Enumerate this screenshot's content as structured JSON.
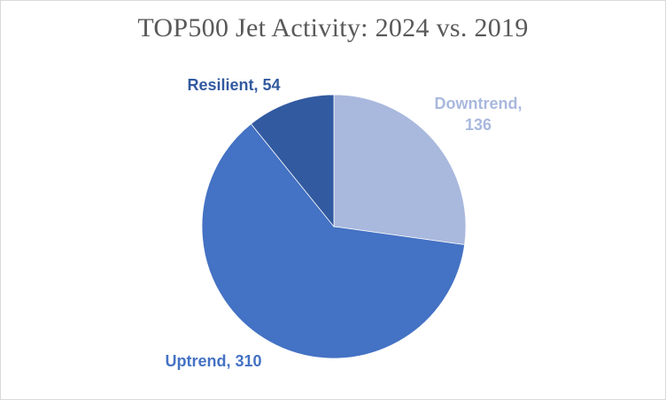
{
  "chart_data": {
    "type": "pie",
    "title": "TOP500 Jet Activity: 2024 vs. 2019",
    "slices": [
      {
        "label": "Downtrend",
        "value": 136,
        "display": "Downtrend, 136",
        "color": "#a9b8dd",
        "label_color": "#a9b8dd"
      },
      {
        "label": "Uptrend",
        "value": 310,
        "display": "Uptrend, 310",
        "color": "#4472c4",
        "label_color": "#4472c4"
      },
      {
        "label": "Resilient",
        "value": 54,
        "display": "Resilient, 54",
        "color": "#325aa0",
        "label_color": "#325aa0"
      }
    ],
    "start_direction": "12 o'clock",
    "direction": "clockwise",
    "legend": "none"
  }
}
